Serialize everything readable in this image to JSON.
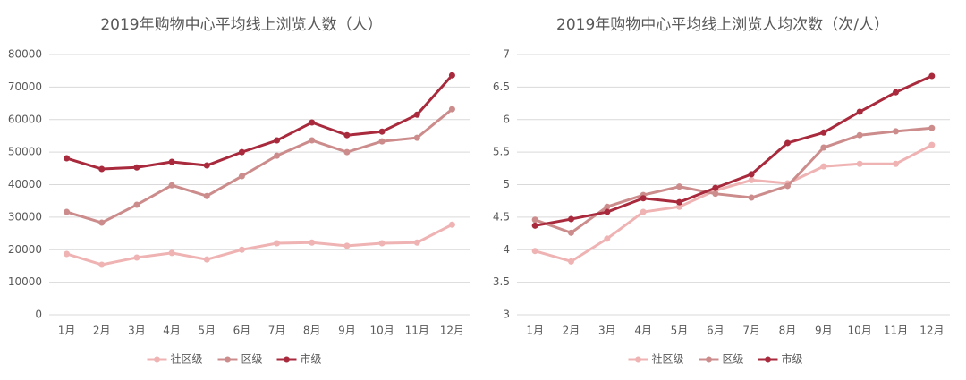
{
  "chart_data": [
    {
      "type": "line",
      "title": "2019年购物中心平均线上浏览人数（人）",
      "categories": [
        "1月",
        "2月",
        "3月",
        "4月",
        "5月",
        "6月",
        "7月",
        "8月",
        "9月",
        "10月",
        "11月",
        "12月"
      ],
      "series": [
        {
          "name": "社区级",
          "color": "#efb3b3",
          "values": [
            18700,
            15400,
            17600,
            19000,
            17000,
            20000,
            22000,
            22200,
            21200,
            22000,
            22200,
            27700
          ]
        },
        {
          "name": "区级",
          "color": "#cc8c8c",
          "values": [
            31600,
            28300,
            33800,
            39800,
            36500,
            42600,
            48900,
            53600,
            50000,
            53300,
            54400,
            63200
          ]
        },
        {
          "name": "市级",
          "color": "#a82a3c",
          "values": [
            48100,
            44800,
            45300,
            47000,
            45900,
            50000,
            53600,
            59100,
            55200,
            56300,
            61500,
            73600
          ]
        }
      ],
      "ylim": [
        0,
        80000
      ],
      "yticks": [
        0,
        10000,
        20000,
        30000,
        40000,
        50000,
        60000,
        70000,
        80000
      ],
      "grid": true,
      "legend": "bottom"
    },
    {
      "type": "line",
      "title": "2019年购物中心平均线上浏览人均次数（次/人）",
      "categories": [
        "1月",
        "2月",
        "3月",
        "4月",
        "5月",
        "6月",
        "7月",
        "8月",
        "9月",
        "10月",
        "11月",
        "12月"
      ],
      "series": [
        {
          "name": "社区级",
          "color": "#efb3b3",
          "values": [
            3.98,
            3.82,
            4.17,
            4.58,
            4.66,
            4.91,
            5.07,
            5.02,
            5.28,
            5.32,
            5.32,
            5.61
          ]
        },
        {
          "name": "区级",
          "color": "#cc8c8c",
          "values": [
            4.46,
            4.26,
            4.66,
            4.84,
            4.97,
            4.86,
            4.8,
            4.98,
            5.57,
            5.76,
            5.82,
            5.87
          ]
        },
        {
          "name": "市级",
          "color": "#a82a3c",
          "values": [
            4.37,
            4.47,
            4.58,
            4.79,
            4.73,
            4.95,
            5.16,
            5.64,
            5.8,
            6.12,
            6.42,
            6.67
          ]
        }
      ],
      "ylim": [
        3,
        7
      ],
      "yticks": [
        3,
        3.5,
        4,
        4.5,
        5,
        5.5,
        6,
        6.5,
        7
      ],
      "grid": true,
      "legend": "bottom"
    }
  ]
}
